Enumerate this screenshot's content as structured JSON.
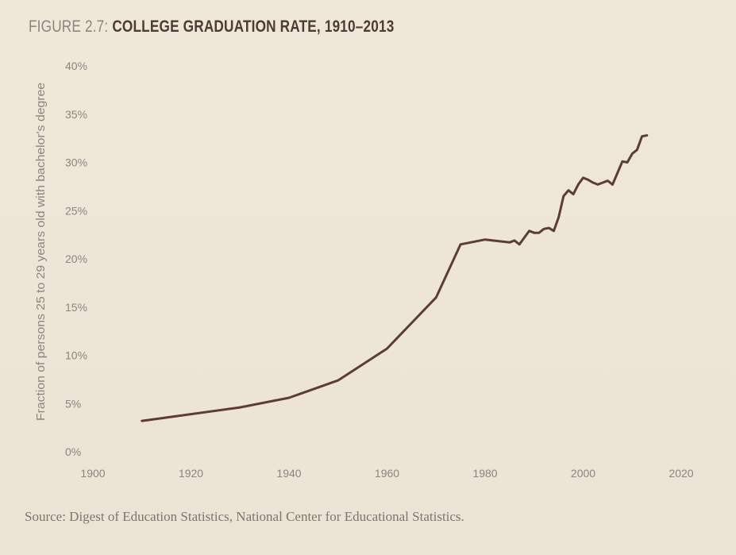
{
  "figure": {
    "label": "FIGURE 2.7:",
    "title": "COLLEGE GRADUATION RATE, 1910–2013"
  },
  "source": "Source: Digest of Education Statistics, National Center for Educational Statistics.",
  "colors": {
    "line": "#5c3b38",
    "text": "#8a8580",
    "title": "#4f3b36",
    "background": "#ece5d6"
  },
  "chart_data": {
    "type": "line",
    "title": "COLLEGE GRADUATION RATE, 1910–2013",
    "xlabel": "",
    "ylabel": "Fraction of persons 25 to 29 years old with bachelor's degree",
    "xlim": [
      1900,
      2020
    ],
    "ylim": [
      0,
      40
    ],
    "x_ticks": [
      1900,
      1920,
      1940,
      1960,
      1980,
      2000,
      2020
    ],
    "y_ticks": [
      0,
      5,
      10,
      15,
      20,
      25,
      30,
      35,
      40
    ],
    "y_tick_labels": [
      "0%",
      "5%",
      "10%",
      "15%",
      "20%",
      "25%",
      "30%",
      "35%",
      "40%"
    ],
    "grid": false,
    "legend": "none",
    "series": [
      {
        "x": [
          1910,
          1920,
          1930,
          1940,
          1950,
          1960,
          1970,
          1975,
          1980,
          1985,
          1986,
          1987,
          1988,
          1989,
          1990,
          1991,
          1992,
          1993,
          1994,
          1995,
          1996,
          1997,
          1998,
          1999,
          2000,
          2001,
          2002,
          2003,
          2004,
          2005,
          2006,
          2007,
          2008,
          2009,
          2010,
          2011,
          2012,
          2013
        ],
        "y": [
          3.2,
          3.9,
          4.6,
          5.6,
          7.4,
          10.7,
          16.0,
          21.5,
          22.0,
          21.7,
          21.9,
          21.5,
          22.2,
          22.9,
          22.7,
          22.7,
          23.1,
          23.2,
          22.9,
          24.3,
          26.5,
          27.1,
          26.7,
          27.7,
          28.4,
          28.2,
          27.9,
          27.7,
          27.9,
          28.1,
          27.7,
          28.9,
          30.1,
          30.0,
          30.9,
          31.3,
          32.7,
          32.8
        ]
      }
    ]
  }
}
